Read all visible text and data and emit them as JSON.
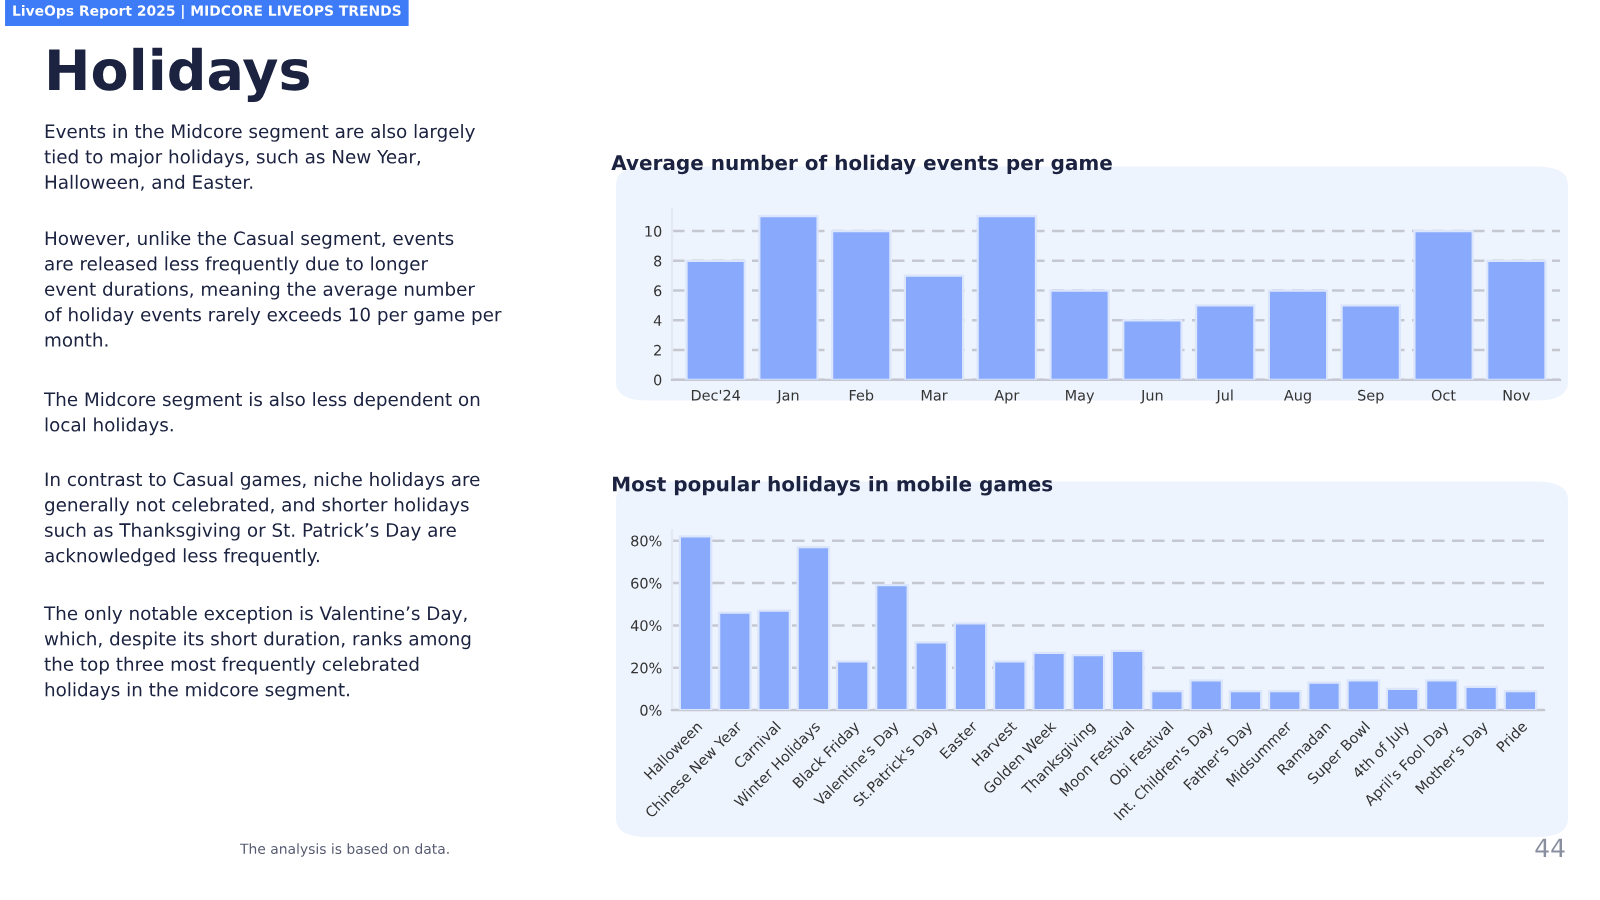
{
  "chart_data": [
    {
      "type": "other",
      "title": "Holidays",
      "annotations": [
        "LiveOps Report 2025 | MIDCORE LIVEOPS TRENDS",
        "Events in the Midcore segment are also largely\ntied to major holidays, such as New Year,\nHalloween, and Easter.",
        "However, unlike the Casual segment, events\nare released less frequently due to longer\nevent durations, meaning the average number\nof holiday events rarely exceeds 10 per game per\nmonth.",
        "The Midcore segment is also less dependent on\nlocal holidays.",
        "In contrast to Casual games, niche holidays are\ngenerally not celebrated, and shorter holidays\nsuch as Thanksgiving or St. Patrick’s Day are\nacknowledged less frequently.",
        "The only notable exception is Valentine’s Day,\nwhich, despite its short duration, ranks among\nthe top three most frequently celebrated\nholidays in the midcore segment.",
        "The analysis is based on data.",
        "44"
      ]
    },
    {
      "type": "bar",
      "title": "Average number of holiday events per game",
      "categories": [
        "Dec'24",
        "Jan",
        "Feb",
        "Mar",
        "Apr",
        "May",
        "Jun",
        "Jul",
        "Aug",
        "Sep",
        "Oct",
        "Nov"
      ],
      "values": [
        8,
        11,
        10,
        7,
        11,
        6,
        4,
        5,
        6,
        5,
        10,
        8
      ],
      "color": "#89aafc",
      "ylim": [
        0,
        11.5
      ],
      "yticks": [
        0,
        2,
        4,
        6,
        8,
        10
      ],
      "grid": "y"
    },
    {
      "type": "bar",
      "title": "Most popular holidays in mobile games",
      "categories": [
        "Halloween",
        "Chinese New Year",
        "Carnival",
        "Winter Holidays",
        "Black Friday",
        "Valentine's Day",
        "St.Patrick's Day",
        "Easter",
        "Harvest",
        "Golden Week",
        "Thanksgiving",
        "Moon Festival",
        "Obi Festival",
        "Int. Children's Day",
        "Father's Day",
        "Midsummer",
        "Ramadan",
        "Super Bowl",
        "4th of July",
        "April's Fool Day",
        "Mother's Day",
        "Pride"
      ],
      "values": [
        82,
        46,
        47,
        77,
        23,
        59,
        32,
        41,
        23,
        27,
        26,
        28,
        9,
        14,
        9,
        9,
        13,
        14,
        10,
        14,
        11,
        9
      ],
      "color": "#89aafc",
      "ylim": [
        0,
        85
      ],
      "yticks": [
        {
          "value": 0,
          "label": "0%"
        },
        {
          "value": 20,
          "label": "20%"
        },
        {
          "value": 40,
          "label": "40%"
        },
        {
          "value": 60,
          "label": "60%"
        },
        {
          "value": 80,
          "label": "80%"
        }
      ],
      "grid": "y"
    }
  ]
}
